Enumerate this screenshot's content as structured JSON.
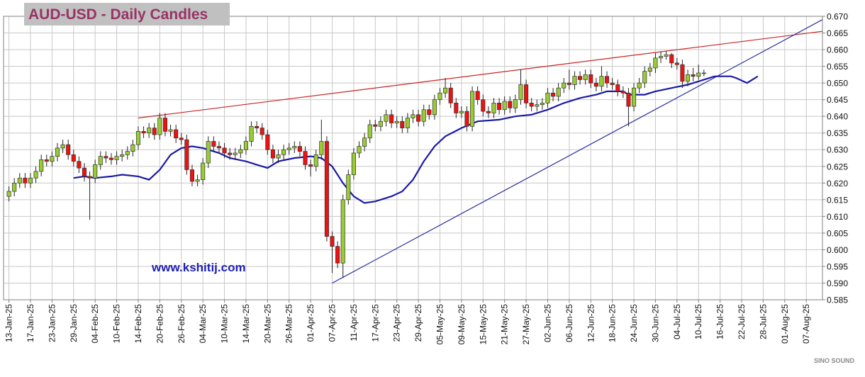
{
  "chart_data": {
    "type": "candlestick",
    "title": "AUD-USD - Daily Candles",
    "annotation": "www.kshitij.com",
    "watermark": "SINO SOUND",
    "up_color": "#99cc33",
    "down_color": "#ee1111",
    "x": [
      "13-Jan-25",
      "14-Jan-25",
      "15-Jan-25",
      "16-Jan-25",
      "17-Jan-25",
      "20-Jan-25",
      "21-Jan-25",
      "22-Jan-25",
      "23-Jan-25",
      "24-Jan-25",
      "27-Jan-25",
      "28-Jan-25",
      "29-Jan-25",
      "30-Jan-25",
      "31-Jan-25",
      "03-Feb-25",
      "04-Feb-25",
      "05-Feb-25",
      "06-Feb-25",
      "07-Feb-25",
      "10-Feb-25",
      "11-Feb-25",
      "12-Feb-25",
      "13-Feb-25",
      "14-Feb-25",
      "17-Feb-25",
      "18-Feb-25",
      "19-Feb-25",
      "20-Feb-25",
      "21-Feb-25",
      "24-Feb-25",
      "25-Feb-25",
      "26-Feb-25",
      "27-Feb-25",
      "28-Feb-25",
      "03-Mar-25",
      "04-Mar-25",
      "05-Mar-25",
      "06-Mar-25",
      "07-Mar-25",
      "10-Mar-25",
      "11-Mar-25",
      "12-Mar-25",
      "13-Mar-25",
      "14-Mar-25",
      "17-Mar-25",
      "18-Mar-25",
      "19-Mar-25",
      "20-Mar-25",
      "21-Mar-25",
      "24-Mar-25",
      "25-Mar-25",
      "26-Mar-25",
      "27-Mar-25",
      "28-Mar-25",
      "31-Mar-25",
      "01-Apr-25",
      "02-Apr-25",
      "03-Apr-25",
      "04-Apr-25",
      "07-Apr-25",
      "08-Apr-25",
      "09-Apr-25",
      "10-Apr-25",
      "11-Apr-25",
      "14-Apr-25",
      "15-Apr-25",
      "16-Apr-25",
      "17-Apr-25",
      "18-Apr-25",
      "21-Apr-25",
      "22-Apr-25",
      "23-Apr-25",
      "24-Apr-25",
      "25-Apr-25",
      "28-Apr-25",
      "29-Apr-25",
      "30-Apr-25",
      "01-May-25",
      "02-May-25",
      "05-May-25",
      "06-May-25",
      "07-May-25",
      "08-May-25",
      "09-May-25",
      "12-May-25",
      "13-May-25",
      "14-May-25",
      "15-May-25",
      "16-May-25",
      "19-May-25",
      "20-May-25",
      "21-May-25",
      "22-May-25",
      "23-May-25",
      "26-May-25",
      "27-May-25",
      "28-May-25",
      "29-May-25",
      "30-May-25",
      "02-Jun-25",
      "03-Jun-25",
      "04-Jun-25",
      "05-Jun-25",
      "06-Jun-25",
      "09-Jun-25",
      "10-Jun-25",
      "11-Jun-25",
      "12-Jun-25",
      "13-Jun-25",
      "16-Jun-25",
      "17-Jun-25",
      "18-Jun-25",
      "19-Jun-25",
      "20-Jun-25",
      "23-Jun-25",
      "24-Jun-25",
      "25-Jun-25",
      "26-Jun-25",
      "27-Jun-25",
      "30-Jun-25",
      "01-Jul-25",
      "02-Jul-25",
      "03-Jul-25",
      "04-Jul-25",
      "07-Jul-25",
      "08-Jul-25",
      "09-Jul-25",
      "10-Jul-25",
      "11-Jul-25"
    ],
    "open": [
      0.616,
      0.6175,
      0.62,
      0.6215,
      0.62,
      0.6215,
      0.6235,
      0.627,
      0.6265,
      0.628,
      0.6305,
      0.6315,
      0.6285,
      0.6265,
      0.6245,
      0.622,
      0.6215,
      0.6255,
      0.628,
      0.6275,
      0.627,
      0.628,
      0.6285,
      0.6295,
      0.6315,
      0.6355,
      0.635,
      0.6365,
      0.6345,
      0.6395,
      0.6355,
      0.636,
      0.6335,
      0.633,
      0.624,
      0.6205,
      0.621,
      0.626,
      0.6325,
      0.631,
      0.6305,
      0.629,
      0.6285,
      0.629,
      0.63,
      0.6325,
      0.637,
      0.6365,
      0.6345,
      0.63,
      0.6275,
      0.6285,
      0.63,
      0.6305,
      0.631,
      0.6295,
      0.6255,
      0.625,
      0.6285,
      0.6325,
      0.604,
      0.601,
      0.596,
      0.615,
      0.6225,
      0.629,
      0.631,
      0.6335,
      0.6375,
      0.637,
      0.6385,
      0.6405,
      0.638,
      0.6385,
      0.6365,
      0.6395,
      0.6405,
      0.6385,
      0.642,
      0.6405,
      0.645,
      0.647,
      0.6485,
      0.644,
      0.641,
      0.6415,
      0.637,
      0.6475,
      0.645,
      0.6415,
      0.641,
      0.644,
      0.642,
      0.6445,
      0.6425,
      0.645,
      0.6495,
      0.644,
      0.643,
      0.6435,
      0.644,
      0.647,
      0.646,
      0.6485,
      0.65,
      0.6495,
      0.652,
      0.651,
      0.6525,
      0.65,
      0.649,
      0.652,
      0.65,
      0.6495,
      0.6475,
      0.647,
      0.643,
      0.6485,
      0.65,
      0.6535,
      0.6545,
      0.6575,
      0.658,
      0.6585,
      0.656,
      0.6555,
      0.6505,
      0.6525,
      0.652,
      0.653
    ],
    "high": [
      0.619,
      0.6215,
      0.623,
      0.623,
      0.623,
      0.625,
      0.6285,
      0.6285,
      0.6295,
      0.632,
      0.633,
      0.633,
      0.63,
      0.628,
      0.626,
      0.6235,
      0.627,
      0.6295,
      0.6295,
      0.629,
      0.6295,
      0.63,
      0.631,
      0.633,
      0.637,
      0.637,
      0.638,
      0.638,
      0.641,
      0.641,
      0.6375,
      0.6375,
      0.635,
      0.6345,
      0.6255,
      0.6225,
      0.6275,
      0.634,
      0.634,
      0.6325,
      0.632,
      0.6305,
      0.6305,
      0.6315,
      0.634,
      0.6385,
      0.6385,
      0.638,
      0.636,
      0.6315,
      0.63,
      0.6315,
      0.632,
      0.6325,
      0.6325,
      0.631,
      0.627,
      0.63,
      0.639,
      0.634,
      0.6055,
      0.6025,
      0.6165,
      0.624,
      0.6305,
      0.6325,
      0.635,
      0.639,
      0.639,
      0.64,
      0.642,
      0.642,
      0.64,
      0.64,
      0.641,
      0.642,
      0.642,
      0.6435,
      0.6435,
      0.6465,
      0.6485,
      0.6515,
      0.65,
      0.6455,
      0.643,
      0.643,
      0.649,
      0.649,
      0.6465,
      0.643,
      0.6455,
      0.6455,
      0.646,
      0.646,
      0.6465,
      0.654,
      0.651,
      0.6455,
      0.645,
      0.6455,
      0.6485,
      0.6485,
      0.65,
      0.6515,
      0.654,
      0.6535,
      0.6535,
      0.654,
      0.654,
      0.6515,
      0.655,
      0.6535,
      0.6515,
      0.651,
      0.649,
      0.6485,
      0.65,
      0.6515,
      0.655,
      0.656,
      0.659,
      0.6595,
      0.6595,
      0.659,
      0.6575,
      0.657,
      0.654,
      0.6545,
      0.6555,
      0.654
    ],
    "low": [
      0.6145,
      0.616,
      0.6185,
      0.6185,
      0.6185,
      0.62,
      0.622,
      0.625,
      0.625,
      0.6265,
      0.629,
      0.627,
      0.625,
      0.623,
      0.6205,
      0.609,
      0.62,
      0.624,
      0.626,
      0.6255,
      0.6255,
      0.6265,
      0.627,
      0.628,
      0.63,
      0.6335,
      0.6335,
      0.633,
      0.633,
      0.634,
      0.634,
      0.632,
      0.6315,
      0.6225,
      0.619,
      0.619,
      0.6195,
      0.6245,
      0.6295,
      0.629,
      0.6275,
      0.627,
      0.627,
      0.6275,
      0.6285,
      0.631,
      0.635,
      0.633,
      0.6285,
      0.626,
      0.626,
      0.627,
      0.6285,
      0.629,
      0.628,
      0.624,
      0.622,
      0.6235,
      0.627,
      0.6025,
      0.593,
      0.5945,
      0.5915,
      0.6135,
      0.621,
      0.6275,
      0.6295,
      0.632,
      0.6355,
      0.6355,
      0.637,
      0.6365,
      0.6365,
      0.635,
      0.635,
      0.638,
      0.637,
      0.637,
      0.639,
      0.639,
      0.6435,
      0.6455,
      0.6425,
      0.6395,
      0.6395,
      0.6355,
      0.6355,
      0.6435,
      0.64,
      0.6395,
      0.6395,
      0.6405,
      0.6405,
      0.641,
      0.641,
      0.6435,
      0.6425,
      0.6415,
      0.6415,
      0.642,
      0.6425,
      0.6445,
      0.6445,
      0.647,
      0.648,
      0.648,
      0.6495,
      0.6495,
      0.6485,
      0.6475,
      0.6475,
      0.6485,
      0.648,
      0.646,
      0.6455,
      0.637,
      0.6415,
      0.647,
      0.6485,
      0.652,
      0.653,
      0.656,
      0.657,
      0.6545,
      0.654,
      0.6485,
      0.649,
      0.6505,
      0.651,
      0.652
    ],
    "close": [
      0.6175,
      0.62,
      0.6215,
      0.62,
      0.6215,
      0.6235,
      0.627,
      0.6265,
      0.628,
      0.6305,
      0.6315,
      0.6285,
      0.6265,
      0.6245,
      0.622,
      0.6215,
      0.6255,
      0.628,
      0.6275,
      0.627,
      0.628,
      0.6285,
      0.6295,
      0.6315,
      0.6355,
      0.635,
      0.6365,
      0.6345,
      0.6395,
      0.6355,
      0.636,
      0.6335,
      0.633,
      0.624,
      0.6205,
      0.621,
      0.626,
      0.6325,
      0.631,
      0.6305,
      0.629,
      0.6285,
      0.629,
      0.63,
      0.6325,
      0.637,
      0.6365,
      0.6345,
      0.63,
      0.6275,
      0.6285,
      0.63,
      0.6305,
      0.631,
      0.6295,
      0.6255,
      0.625,
      0.6285,
      0.6325,
      0.604,
      0.601,
      0.596,
      0.615,
      0.6225,
      0.629,
      0.631,
      0.6335,
      0.6375,
      0.637,
      0.6385,
      0.6405,
      0.638,
      0.6385,
      0.6365,
      0.6395,
      0.6405,
      0.6385,
      0.642,
      0.6405,
      0.645,
      0.647,
      0.6485,
      0.644,
      0.641,
      0.6415,
      0.637,
      0.6475,
      0.645,
      0.6415,
      0.641,
      0.644,
      0.642,
      0.6445,
      0.6425,
      0.645,
      0.6495,
      0.644,
      0.643,
      0.6435,
      0.644,
      0.647,
      0.646,
      0.6485,
      0.65,
      0.6495,
      0.652,
      0.651,
      0.6525,
      0.65,
      0.649,
      0.652,
      0.65,
      0.6495,
      0.6475,
      0.647,
      0.643,
      0.6485,
      0.65,
      0.6535,
      0.6545,
      0.6575,
      0.658,
      0.6585,
      0.656,
      0.6555,
      0.6505,
      0.6525,
      0.652,
      0.653,
      0.653
    ],
    "moving_average": {
      "color": "#1a1aa6",
      "x": [
        "29-Jan-25",
        "31-Jan-25",
        "04-Feb-25",
        "07-Feb-25",
        "11-Feb-25",
        "14-Feb-25",
        "18-Feb-25",
        "20-Feb-25",
        "24-Feb-25",
        "26-Feb-25",
        "28-Feb-25",
        "04-Mar-25",
        "07-Mar-25",
        "11-Mar-25",
        "14-Mar-25",
        "18-Mar-25",
        "20-Mar-25",
        "24-Mar-25",
        "27-Mar-25",
        "01-Apr-25",
        "03-Apr-25",
        "07-Apr-25",
        "09-Apr-25",
        "11-Apr-25",
        "15-Apr-25",
        "17-Apr-25",
        "22-Apr-25",
        "24-Apr-25",
        "28-Apr-25",
        "30-Apr-25",
        "02-May-25",
        "06-May-25",
        "09-May-25",
        "14-May-25",
        "20-May-25",
        "23-May-25",
        "28-May-25",
        "02-Jun-25",
        "05-Jun-25",
        "10-Jun-25",
        "13-Jun-25",
        "17-Jun-25",
        "20-Jun-25",
        "23-Jun-25",
        "26-Jun-25",
        "30-Jun-25",
        "03-Jul-25",
        "08-Jul-25",
        "11-Jul-25",
        "15-Jul-25",
        "18-Jul-25",
        "21-Jul-25",
        "23-Jul-25",
        "25-Jul-25"
      ],
      "values": [
        0.6215,
        0.622,
        0.6215,
        0.622,
        0.6225,
        0.622,
        0.621,
        0.624,
        0.6285,
        0.6305,
        0.631,
        0.6305,
        0.629,
        0.6275,
        0.6265,
        0.6255,
        0.6245,
        0.6265,
        0.6275,
        0.628,
        0.6275,
        0.625,
        0.62,
        0.616,
        0.614,
        0.6145,
        0.616,
        0.6175,
        0.621,
        0.6265,
        0.631,
        0.634,
        0.6365,
        0.6385,
        0.639,
        0.64,
        0.6405,
        0.642,
        0.644,
        0.6455,
        0.6465,
        0.6475,
        0.6475,
        0.6465,
        0.6465,
        0.6475,
        0.6485,
        0.6495,
        0.651,
        0.652,
        0.652,
        0.6515,
        0.65,
        0.652
      ]
    },
    "trendlines": [
      {
        "color": "#cc2222",
        "x": [
          "14-Feb-25",
          "12-Aug-25"
        ],
        "values": [
          0.6395,
          0.6655
        ]
      },
      {
        "color": "#2a2aa0",
        "x": [
          "07-Apr-25",
          "12-Aug-25"
        ],
        "values": [
          0.59,
          0.669
        ]
      }
    ],
    "xlim": [
      "10-Jan-25",
      "12-Aug-25"
    ],
    "xticks": [
      "13-Jan-25",
      "17-Jan-25",
      "23-Jan-25",
      "29-Jan-25",
      "04-Feb-25",
      "10-Feb-25",
      "14-Feb-25",
      "20-Feb-25",
      "26-Feb-25",
      "04-Mar-25",
      "10-Mar-25",
      "14-Mar-25",
      "20-Mar-25",
      "26-Mar-25",
      "01-Apr-25",
      "07-Apr-25",
      "11-Apr-25",
      "17-Apr-25",
      "23-Apr-25",
      "29-Apr-25",
      "05-May-25",
      "09-May-25",
      "15-May-25",
      "21-May-25",
      "27-May-25",
      "02-Jun-25",
      "06-Jun-25",
      "12-Jun-25",
      "18-Jun-25",
      "24-Jun-25",
      "30-Jun-25",
      "04-Jul-25",
      "10-Jul-25",
      "16-Jul-25",
      "22-Jul-25",
      "28-Jul-25",
      "01-Aug-25",
      "07-Aug-25"
    ],
    "ylim": [
      0.585,
      0.67
    ],
    "yticks": [
      {
        "value": 0.585,
        "label": "0.585"
      },
      {
        "value": 0.59,
        "label": "0.590"
      },
      {
        "value": 0.595,
        "label": "0.595"
      },
      {
        "value": 0.6,
        "label": "0.600"
      },
      {
        "value": 0.605,
        "label": "0.605"
      },
      {
        "value": 0.61,
        "label": "0.610"
      },
      {
        "value": 0.615,
        "label": "0.615"
      },
      {
        "value": 0.62,
        "label": "0.620"
      },
      {
        "value": 0.625,
        "label": "0.625"
      },
      {
        "value": 0.63,
        "label": "0.630"
      },
      {
        "value": 0.635,
        "label": "0.635"
      },
      {
        "value": 0.64,
        "label": "0.640"
      },
      {
        "value": 0.645,
        "label": "0.645"
      },
      {
        "value": 0.65,
        "label": "0.650"
      },
      {
        "value": 0.655,
        "label": "0.655"
      },
      {
        "value": 0.66,
        "label": "0.660"
      },
      {
        "value": 0.665,
        "label": "0.665"
      },
      {
        "value": 0.67,
        "label": "0.670"
      }
    ],
    "grid": true
  }
}
